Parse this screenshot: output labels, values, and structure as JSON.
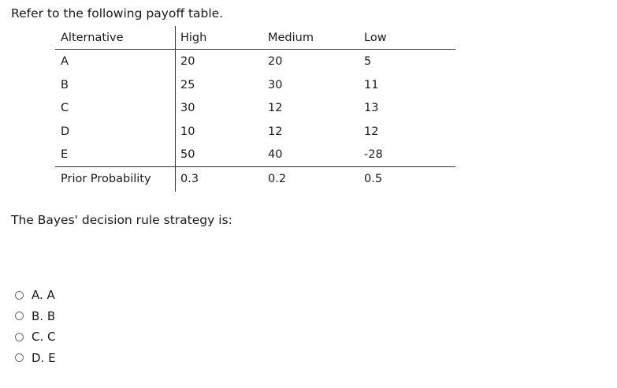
{
  "prompt": "Refer to the following payoff table.",
  "table": {
    "headers": {
      "alternative": "Alternative",
      "high": "High",
      "medium": "Medium",
      "low": "Low"
    },
    "rows": [
      {
        "alternative": "A",
        "high": "20",
        "medium": "20",
        "low": "5"
      },
      {
        "alternative": "B",
        "high": "25",
        "medium": "30",
        "low": "11"
      },
      {
        "alternative": "C",
        "high": "30",
        "medium": "12",
        "low": "13"
      },
      {
        "alternative": "D",
        "high": "10",
        "medium": "12",
        "low": "12"
      },
      {
        "alternative": "E",
        "high": "50",
        "medium": "40",
        "low": "-28"
      }
    ],
    "prior": {
      "label": "Prior Probability",
      "high": "0.3",
      "medium": "0.2",
      "low": "0.5"
    }
  },
  "question": "The Bayes' decision rule strategy is:",
  "options": [
    {
      "label": "A. A"
    },
    {
      "label": "B. B"
    },
    {
      "label": "C. C"
    },
    {
      "label": "D. E"
    }
  ]
}
